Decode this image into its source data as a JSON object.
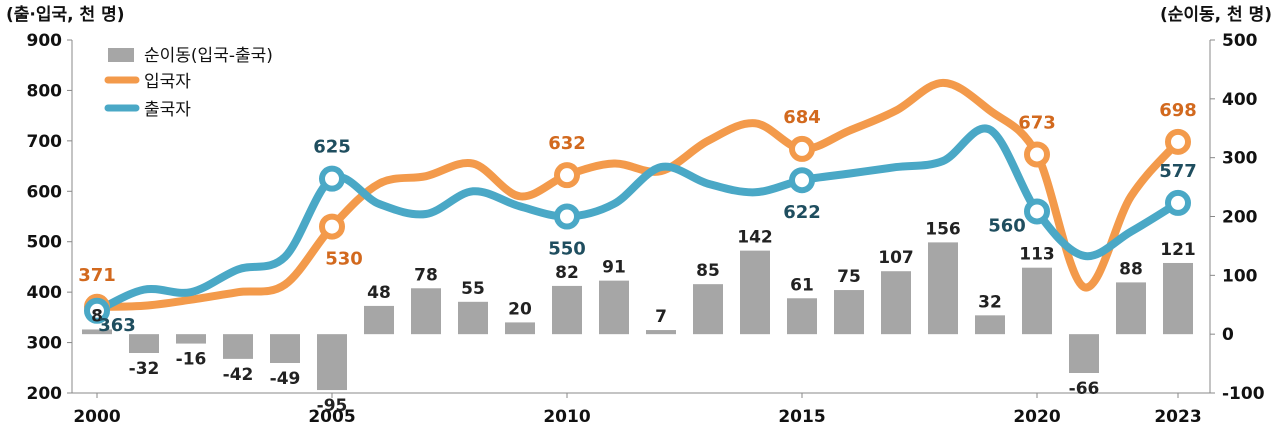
{
  "chart_data": {
    "type": "bar+line",
    "left_axis_title": "(출·입국, 천 명)",
    "right_axis_title": "(순이동, 천 명)",
    "left_ylim": [
      200,
      900
    ],
    "left_ticks": [
      "900",
      "800",
      "700",
      "600",
      "500",
      "400",
      "300",
      "200"
    ],
    "right_ylim": [
      -100,
      500
    ],
    "right_ticks": [
      "500",
      "400",
      "300",
      "200",
      "100",
      "0",
      "-100"
    ],
    "x_labels": [
      {
        "year": 2000,
        "label": "2000"
      },
      {
        "year": 2005,
        "label": "2005"
      },
      {
        "year": 2010,
        "label": "2010"
      },
      {
        "year": 2015,
        "label": "2015"
      },
      {
        "year": 2020,
        "label": "2020"
      },
      {
        "year": 2023,
        "label": "2023"
      }
    ],
    "years": [
      2000,
      2001,
      2002,
      2003,
      2004,
      2005,
      2006,
      2007,
      2008,
      2009,
      2010,
      2011,
      2012,
      2013,
      2014,
      2015,
      2016,
      2017,
      2018,
      2019,
      2020,
      2021,
      2022,
      2023
    ],
    "bar_series": {
      "name": "순이동(입국-출국)",
      "color": "#a6a6a6",
      "values": [
        8,
        -32,
        -16,
        -42,
        -49,
        -95,
        48,
        78,
        55,
        20,
        82,
        91,
        7,
        85,
        142,
        61,
        75,
        107,
        156,
        32,
        113,
        -66,
        88,
        121
      ],
      "labels": [
        "8",
        "-32",
        "-16",
        "-42",
        "-49",
        "-95",
        "48",
        "78",
        "55",
        "20",
        "82",
        "91",
        "7",
        "85",
        "142",
        "61",
        "75",
        "107",
        "156",
        "32",
        "113",
        "-66",
        "88",
        "121"
      ]
    },
    "line_series": [
      {
        "name": "입국자",
        "color": "#f39a4b",
        "label_color": "#d2691e",
        "values": [
          371,
          373,
          385,
          400,
          415,
          530,
          615,
          630,
          655,
          590,
          632,
          655,
          640,
          700,
          735,
          684,
          720,
          760,
          815,
          760,
          673,
          410,
          590,
          698
        ],
        "marked": [
          {
            "year": 2000,
            "label": "371"
          },
          {
            "year": 2005,
            "label": "530"
          },
          {
            "year": 2010,
            "label": "632"
          },
          {
            "year": 2015,
            "label": "684"
          },
          {
            "year": 2020,
            "label": "673"
          },
          {
            "year": 2023,
            "label": "698"
          }
        ]
      },
      {
        "name": "출국자",
        "color": "#4aa8c6",
        "label_color": "#1f4e5f",
        "values": [
          363,
          405,
          400,
          445,
          470,
          625,
          575,
          555,
          600,
          570,
          550,
          575,
          648,
          615,
          598,
          622,
          635,
          648,
          660,
          722,
          560,
          472,
          520,
          577
        ],
        "marked": [
          {
            "year": 2000,
            "label": "363"
          },
          {
            "year": 2005,
            "label": "625"
          },
          {
            "year": 2010,
            "label": "550"
          },
          {
            "year": 2015,
            "label": "622"
          },
          {
            "year": 2020,
            "label": "560"
          },
          {
            "year": 2023,
            "label": "577"
          }
        ]
      }
    ],
    "legend_position": "top-left",
    "grid": false
  }
}
